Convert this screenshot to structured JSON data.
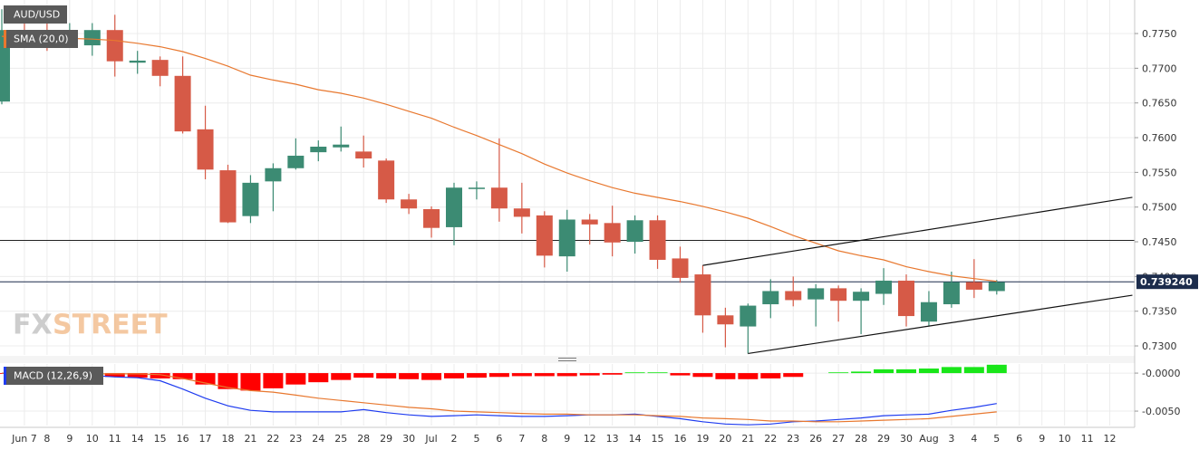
{
  "chart_data": [
    {
      "type": "candlestick",
      "title": "AUD/USD",
      "categories": [
        null,
        "Jun 7",
        "8",
        "9",
        "10",
        "11",
        "14",
        "15",
        "16",
        "17",
        "18",
        "21",
        "22",
        "23",
        "24",
        "25",
        "28",
        "29",
        "30",
        "Jul",
        "2",
        "5",
        "6",
        "7",
        "8",
        "9",
        "12",
        "13",
        "14",
        "15",
        "16",
        "19",
        "20",
        "21",
        "22",
        "23",
        "26",
        "27",
        "28",
        "29",
        "30",
        "Aug",
        "3",
        "4",
        "5",
        "6",
        "9",
        "10",
        "11",
        "12"
      ],
      "open": [
        0.7652,
        0.7752,
        0.775,
        0.7742,
        0.7733,
        0.7755,
        0.7708,
        0.7712,
        0.7689,
        0.7612,
        0.7553,
        0.7487,
        0.7537,
        0.7556,
        0.7579,
        0.7586,
        0.758,
        0.7567,
        0.7511,
        0.7497,
        0.7471,
        0.7526,
        0.7528,
        0.7498,
        0.7488,
        0.7429,
        0.7482,
        0.7477,
        0.745,
        0.7481,
        0.7426,
        0.7403,
        0.7344,
        0.7328,
        0.736,
        0.7379,
        0.7367,
        0.7383,
        0.7365,
        0.7375,
        0.7394,
        0.7335,
        0.736,
        0.7392,
        0.7379,
        null,
        null,
        null,
        null,
        null
      ],
      "high": [
        0.7785,
        0.7775,
        0.7768,
        0.7765,
        0.7765,
        0.7777,
        0.7725,
        0.7717,
        0.7717,
        0.7646,
        0.7561,
        0.7546,
        0.7563,
        0.7599,
        0.7596,
        0.7616,
        0.7603,
        0.757,
        0.7519,
        0.7501,
        0.7535,
        0.7537,
        0.7599,
        0.7535,
        0.7494,
        0.7496,
        0.749,
        0.7502,
        0.7488,
        0.7488,
        0.7443,
        0.7416,
        0.7355,
        0.7361,
        0.7396,
        0.74,
        0.7389,
        0.7387,
        0.7383,
        0.7412,
        0.7403,
        0.7379,
        0.7407,
        0.7425,
        0.7395,
        null,
        null,
        null,
        null,
        null
      ],
      "low": [
        0.7648,
        0.7735,
        0.7725,
        0.773,
        0.7718,
        0.7688,
        0.7692,
        0.7674,
        0.7606,
        0.754,
        0.7477,
        0.7477,
        0.7494,
        0.7554,
        0.7566,
        0.758,
        0.7557,
        0.7506,
        0.749,
        0.7456,
        0.7445,
        0.7511,
        0.7479,
        0.7462,
        0.7413,
        0.7407,
        0.7446,
        0.7429,
        0.7433,
        0.7411,
        0.7391,
        0.7319,
        0.7298,
        0.7289,
        0.734,
        0.7357,
        0.7328,
        0.7335,
        0.7317,
        0.7359,
        0.7328,
        0.7328,
        0.7355,
        0.7369,
        0.7374,
        null,
        null,
        null,
        null,
        null
      ],
      "close": [
        0.7755,
        0.7745,
        0.7742,
        0.7752,
        0.7755,
        0.771,
        0.7711,
        0.7689,
        0.7609,
        0.7554,
        0.7478,
        0.7535,
        0.7556,
        0.7574,
        0.7587,
        0.759,
        0.757,
        0.7511,
        0.7498,
        0.747,
        0.7528,
        0.7528,
        0.7498,
        0.7486,
        0.743,
        0.7482,
        0.7475,
        0.7449,
        0.7481,
        0.7424,
        0.7398,
        0.7344,
        0.7331,
        0.7358,
        0.7379,
        0.7366,
        0.7383,
        0.7365,
        0.7378,
        0.7394,
        0.7343,
        0.7363,
        0.7392,
        0.7381,
        0.7392,
        null,
        null,
        null,
        null,
        null
      ],
      "up_color": "#3c8b73",
      "down_color": "#d65a47",
      "series": [
        {
          "name": "SMA (20,0)",
          "color": "#e8782f",
          "values": [
            0.7746,
            0.7745,
            0.7744,
            0.7743,
            0.7742,
            0.774,
            0.7736,
            0.7731,
            0.7724,
            0.7714,
            0.7703,
            0.769,
            0.7683,
            0.7677,
            0.7669,
            0.7664,
            0.7657,
            0.7648,
            0.7638,
            0.7628,
            0.7615,
            0.7603,
            0.759,
            0.7577,
            0.7562,
            0.7549,
            0.7538,
            0.7528,
            0.752,
            0.7514,
            0.7508,
            0.7501,
            0.7493,
            0.7484,
            0.7472,
            0.7459,
            0.7448,
            0.7437,
            0.743,
            0.7424,
            0.7414,
            0.7407,
            0.7401,
            0.7397,
            0.7393,
            null,
            null,
            null,
            null,
            null
          ]
        }
      ],
      "hlines": [
        0.7452
      ],
      "trendlines": [
        {
          "x": [
            31,
            50
          ],
          "y": [
            0.7416,
            0.7514
          ]
        },
        {
          "x": [
            33,
            50
          ],
          "y": [
            0.7289,
            0.7373
          ]
        }
      ],
      "last_price": {
        "value": 0.73924,
        "label": "0.739240"
      },
      "watermark": {
        "prefix": "FX",
        "suffix": "STREET"
      },
      "ylim": [
        0.7287,
        0.77983
      ],
      "yticks": [
        {
          "value": 0.775,
          "label": "0.7750"
        },
        {
          "value": 0.77,
          "label": "0.7700"
        },
        {
          "value": 0.765,
          "label": "0.7650"
        },
        {
          "value": 0.76,
          "label": "0.7600"
        },
        {
          "value": 0.755,
          "label": "0.7550"
        },
        {
          "value": 0.75,
          "label": "0.7500"
        },
        {
          "value": 0.745,
          "label": "0.7450"
        },
        {
          "value": 0.74,
          "label": "0.7400"
        },
        {
          "value": 0.735,
          "label": "0.7350"
        },
        {
          "value": 0.73,
          "label": "0.7300"
        }
      ],
      "grid": true
    },
    {
      "type": "macd",
      "title": "MACD (12,26,9)",
      "histogram": {
        "pos_color": "#19e619",
        "neg_color": "#ff0000",
        "values": [
          -0.0001,
          -0.0002,
          -0.0002,
          -0.0002,
          -0.0003,
          -0.0005,
          -0.0006,
          -0.0007,
          -0.0008,
          -0.0015,
          -0.0021,
          -0.0023,
          -0.002,
          -0.0015,
          -0.0012,
          -0.0009,
          -0.0006,
          -0.0007,
          -0.0008,
          -0.0009,
          -0.0007,
          -0.0006,
          -0.0005,
          -0.0004,
          -0.0004,
          -0.0004,
          -0.0003,
          -0.0002,
          0.0001,
          0.0001,
          -0.0003,
          -0.0005,
          -0.0008,
          -0.0008,
          -0.0007,
          -0.0005,
          0.0,
          0.0001,
          0.0002,
          0.0005,
          0.0005,
          0.0006,
          0.0008,
          0.0008,
          0.0011,
          null,
          null,
          null,
          null,
          null
        ]
      },
      "series": [
        {
          "color": "#1f3cf0",
          "values": [
            0.0,
            -0.0001,
            -0.0001,
            -0.0002,
            -0.0003,
            -0.0005,
            -0.0006,
            -0.001,
            -0.0021,
            -0.0033,
            -0.0043,
            -0.0049,
            -0.0051,
            -0.0051,
            -0.0051,
            -0.0051,
            -0.0048,
            -0.0052,
            -0.0055,
            -0.0057,
            -0.0056,
            -0.0055,
            -0.0056,
            -0.0057,
            -0.0057,
            -0.0056,
            -0.0055,
            -0.0055,
            -0.0054,
            -0.0057,
            -0.006,
            -0.0064,
            -0.0067,
            -0.0068,
            -0.0067,
            -0.0064,
            -0.0063,
            -0.0061,
            -0.0059,
            -0.0056,
            -0.0055,
            -0.0054,
            -0.0049,
            -0.0045,
            -0.004,
            null,
            null,
            null,
            null,
            null
          ]
        },
        {
          "color": "#e8782f",
          "values": [
            0.0,
            -0.0001,
            -0.0001,
            -0.0001,
            -0.0001,
            -0.0001,
            -0.0001,
            -0.0002,
            -0.0007,
            -0.0013,
            -0.0019,
            -0.0023,
            -0.0025,
            -0.0029,
            -0.0033,
            -0.0036,
            -0.0039,
            -0.0042,
            -0.0045,
            -0.0047,
            -0.005,
            -0.0051,
            -0.0052,
            -0.0053,
            -0.0054,
            -0.0054,
            -0.0055,
            -0.0055,
            -0.0055,
            -0.0056,
            -0.0057,
            -0.0059,
            -0.006,
            -0.0061,
            -0.0063,
            -0.0063,
            -0.0064,
            -0.0064,
            -0.0063,
            -0.0062,
            -0.0061,
            -0.006,
            -0.0057,
            -0.0054,
            -0.0051,
            null,
            null,
            null,
            null,
            null
          ]
        }
      ],
      "ylim": [
        -0.0069,
        0.0012
      ],
      "yticks": [
        {
          "value": 0,
          "label": "-0.0000"
        },
        {
          "value": -0.005,
          "label": "-0.0050"
        }
      ],
      "grid": true
    }
  ]
}
